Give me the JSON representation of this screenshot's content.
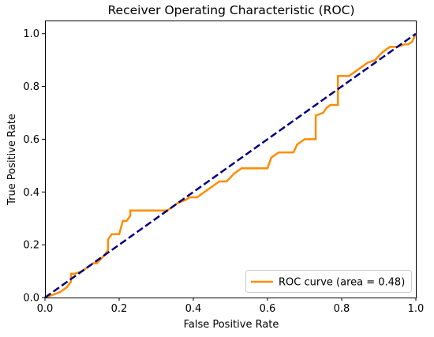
{
  "chart_data": {
    "type": "line",
    "title": "Receiver Operating Characteristic (ROC)",
    "xlabel": "False Positive Rate",
    "ylabel": "True Positive Rate",
    "xlim": [
      0.0,
      1.0
    ],
    "ylim": [
      0.0,
      1.05
    ],
    "x_ticks": [
      "0.0",
      "0.2",
      "0.4",
      "0.6",
      "0.8",
      "1.0"
    ],
    "y_ticks": [
      "0.0",
      "0.2",
      "0.4",
      "0.6",
      "0.8",
      "1.0"
    ],
    "grid": false,
    "legend_position": "lower-right",
    "series": [
      {
        "name": "ROC curve (area = 0.48)",
        "color": "#ff8c00",
        "style": "solid",
        "x": [
          0.0,
          0.02,
          0.04,
          0.06,
          0.07,
          0.07,
          0.08,
          0.1,
          0.11,
          0.12,
          0.13,
          0.14,
          0.16,
          0.17,
          0.17,
          0.18,
          0.2,
          0.21,
          0.22,
          0.23,
          0.23,
          0.31,
          0.33,
          0.34,
          0.36,
          0.38,
          0.39,
          0.41,
          0.43,
          0.45,
          0.47,
          0.49,
          0.51,
          0.53,
          0.55,
          0.57,
          0.6,
          0.61,
          0.63,
          0.65,
          0.67,
          0.68,
          0.7,
          0.72,
          0.73,
          0.73,
          0.75,
          0.76,
          0.77,
          0.79,
          0.79,
          0.82,
          0.83,
          0.85,
          0.87,
          0.89,
          0.91,
          0.93,
          0.95,
          0.97,
          0.98,
          0.99,
          1.0
        ],
        "y": [
          0.0,
          0.01,
          0.02,
          0.04,
          0.06,
          0.09,
          0.09,
          0.1,
          0.11,
          0.12,
          0.13,
          0.13,
          0.16,
          0.18,
          0.22,
          0.24,
          0.24,
          0.29,
          0.29,
          0.31,
          0.33,
          0.33,
          0.33,
          0.34,
          0.36,
          0.37,
          0.38,
          0.38,
          0.4,
          0.42,
          0.44,
          0.44,
          0.47,
          0.49,
          0.49,
          0.49,
          0.49,
          0.53,
          0.55,
          0.55,
          0.55,
          0.58,
          0.6,
          0.6,
          0.6,
          0.69,
          0.7,
          0.72,
          0.73,
          0.73,
          0.84,
          0.84,
          0.85,
          0.87,
          0.89,
          0.9,
          0.93,
          0.95,
          0.95,
          0.96,
          0.96,
          0.97,
          1.0
        ]
      },
      {
        "color": "#000080",
        "style": "dashed",
        "x": [
          0.0,
          1.0
        ],
        "y": [
          0.0,
          1.0
        ]
      }
    ]
  }
}
